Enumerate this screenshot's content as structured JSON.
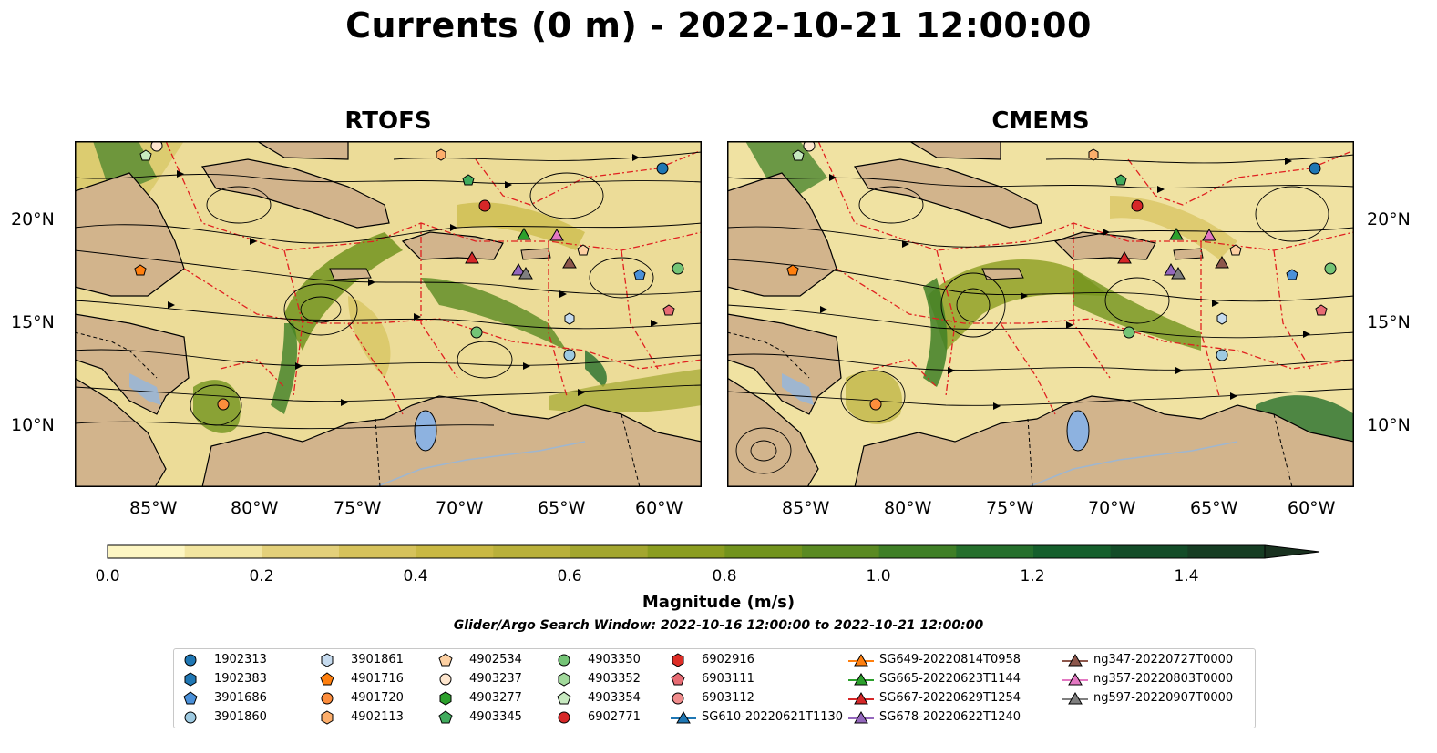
{
  "title": "Currents (0 m) - 2022-10-21 12:00:00",
  "panels": [
    {
      "title": "RTOFS"
    },
    {
      "title": "CMEMS"
    }
  ],
  "lat_labels": [
    "20°N",
    "15°N",
    "10°N"
  ],
  "lon_labels": [
    "85°W",
    "80°W",
    "75°W",
    "70°W",
    "65°W",
    "60°W"
  ],
  "colorbar": {
    "label": "Magnitude (m/s)",
    "ticks": [
      "0.0",
      "0.2",
      "0.4",
      "0.6",
      "0.8",
      "1.0",
      "1.2",
      "1.4"
    ],
    "range": [
      0,
      1.5
    ],
    "extend": "max",
    "colors": [
      "#fdf6c3",
      "#f2e5a0",
      "#e3d07a",
      "#d6c25b",
      "#c9b843",
      "#b9b03a",
      "#a3a62f",
      "#8b9d20",
      "#72931d",
      "#5a8a22",
      "#3f7f26",
      "#256f2c",
      "#155f2c",
      "#134c28",
      "#163d23",
      "#19311f"
    ]
  },
  "search_window": "Glider/Argo Search Window: 2022-10-16 12:00:00 to 2022-10-21 12:00:00",
  "legend": {
    "columns": [
      [
        {
          "label": "1902313",
          "marker": "circle",
          "color": "#1f77b4"
        },
        {
          "label": "1902383",
          "marker": "hexagon",
          "color": "#1f77b4"
        },
        {
          "label": "3901686",
          "marker": "pentagon",
          "color": "#4a90d9"
        },
        {
          "label": "3901860",
          "marker": "circle",
          "color": "#9ecae1"
        }
      ],
      [
        {
          "label": "3901861",
          "marker": "hexagon",
          "color": "#c6dbef"
        },
        {
          "label": "4901716",
          "marker": "pentagon",
          "color": "#ff7f0e"
        },
        {
          "label": "4901720",
          "marker": "circle",
          "color": "#fd8d3c"
        },
        {
          "label": "4902113",
          "marker": "hexagon",
          "color": "#fdae6b"
        }
      ],
      [
        {
          "label": "4902534",
          "marker": "pentagon",
          "color": "#fdd0a2"
        },
        {
          "label": "4903237",
          "marker": "circle",
          "color": "#fee6ce"
        },
        {
          "label": "4903277",
          "marker": "hexagon",
          "color": "#2ca02c"
        },
        {
          "label": "4903345",
          "marker": "pentagon",
          "color": "#41ab5d"
        }
      ],
      [
        {
          "label": "4903350",
          "marker": "circle",
          "color": "#74c476"
        },
        {
          "label": "4903352",
          "marker": "hexagon",
          "color": "#a1d99b"
        },
        {
          "label": "4903354",
          "marker": "pentagon",
          "color": "#c7e9c0"
        },
        {
          "label": "6902771",
          "marker": "circle",
          "color": "#d62728"
        }
      ],
      [
        {
          "label": "6902916",
          "marker": "hexagon",
          "color": "#de2d26"
        },
        {
          "label": "6903111",
          "marker": "pentagon",
          "color": "#e76b73"
        },
        {
          "label": "6903112",
          "marker": "circle",
          "color": "#f08c8c"
        },
        {
          "label": "SG610-20220621T1130",
          "marker": "triangle-line",
          "color": "#1f77b4"
        }
      ],
      [
        {
          "label": "SG649-20220814T0958",
          "marker": "triangle-line",
          "color": "#ff7f0e"
        },
        {
          "label": "SG665-20220623T1144",
          "marker": "triangle-line",
          "color": "#2ca02c"
        },
        {
          "label": "SG667-20220629T1254",
          "marker": "triangle-line",
          "color": "#d62728"
        },
        {
          "label": "SG678-20220622T1240",
          "marker": "triangle-line",
          "color": "#9467bd"
        }
      ],
      [
        {
          "label": "ng347-20220727T0000",
          "marker": "triangle-line",
          "color": "#8c564b"
        },
        {
          "label": "ng357-20220803T0000",
          "marker": "triangle-line",
          "color": "#e377c2"
        },
        {
          "label": "ng597-20220907T0000",
          "marker": "triangle-line",
          "color": "#7f7f7f"
        }
      ]
    ]
  }
}
